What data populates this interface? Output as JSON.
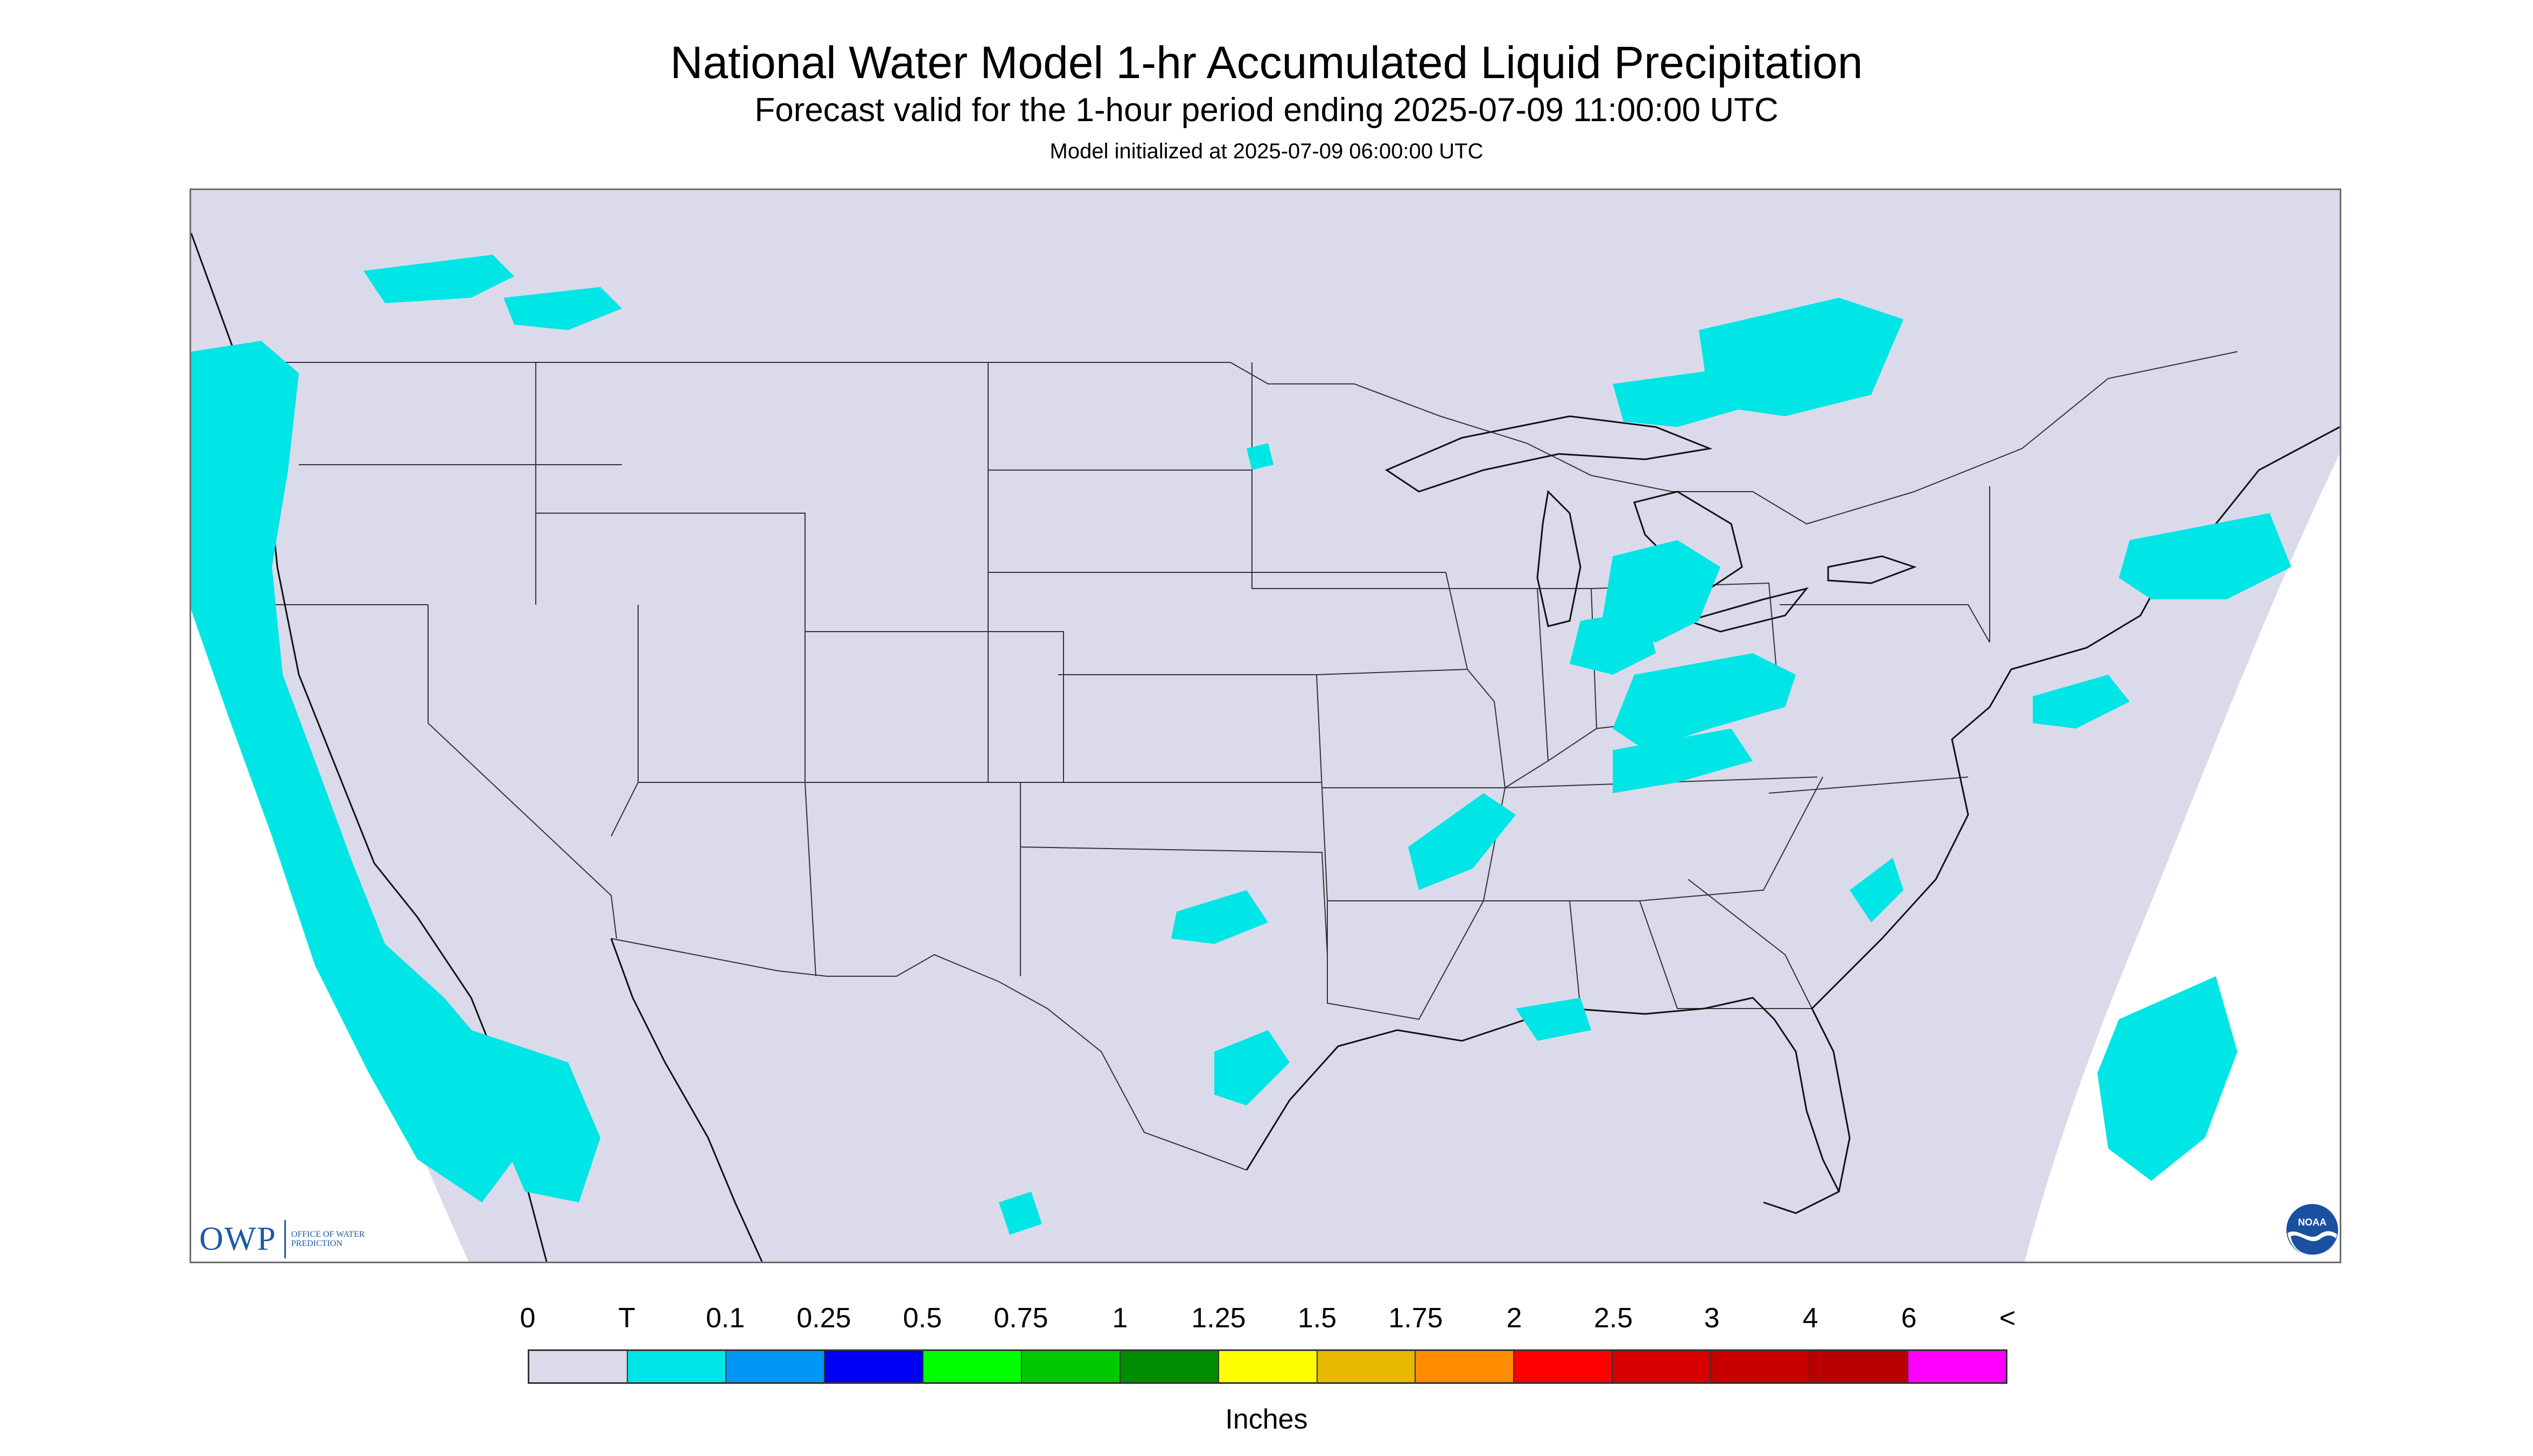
{
  "header": {
    "title": "National Water Model 1-hr Accumulated Liquid Precipitation",
    "subtitle": "Forecast valid for the 1-hour period ending 2025-07-09 11:00:00 UTC",
    "init": "Model initialized at 2025-07-09 06:00:00 UTC"
  },
  "map": {
    "domain_fill": "#dadaeb",
    "outside_fill": "#ffffff",
    "boundary_color": "#333333",
    "precip_trace_color": "#00e5e5"
  },
  "logos": {
    "owp_mark": "OWP",
    "owp_text": "OFFICE OF WATER PREDICTION",
    "noaa_text": "NOAA"
  },
  "legend": {
    "labels": [
      "0",
      "T",
      "0.1",
      "0.25",
      "0.5",
      "0.75",
      "1",
      "1.25",
      "1.5",
      "1.75",
      "2",
      "2.5",
      "3",
      "4",
      "6",
      "<"
    ],
    "colors": [
      "#dadaeb",
      "#00e5e5",
      "#0096f5",
      "#0000f5",
      "#00ff00",
      "#00c800",
      "#008c00",
      "#ffff00",
      "#e6b900",
      "#ff8c00",
      "#ff0000",
      "#d70000",
      "#c80000",
      "#b90000",
      "#ff00ff",
      "#9657c8"
    ],
    "units": "Inches"
  }
}
